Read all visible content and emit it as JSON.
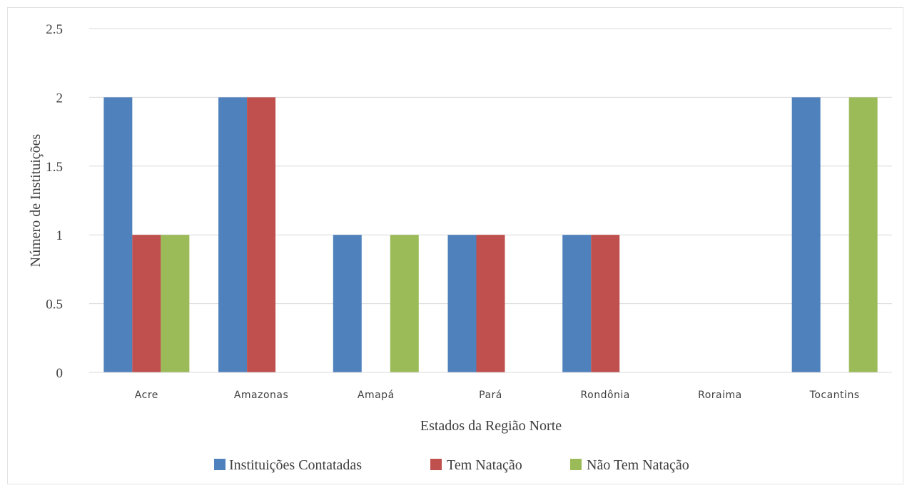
{
  "chart_data": {
    "type": "bar",
    "categories": [
      "Acre",
      "Amazonas",
      "Amapá",
      "Pará",
      "Rondônia",
      "Roraima",
      "Tocantins"
    ],
    "series": [
      {
        "name": "Instituições Contatadas",
        "color": "#4F81BD",
        "values": [
          2,
          2,
          1,
          1,
          1,
          0,
          2
        ]
      },
      {
        "name": "Tem Natação",
        "color": "#C0504D",
        "values": [
          1,
          2,
          0,
          1,
          1,
          0,
          0
        ]
      },
      {
        "name": "Não Tem Natação",
        "color": "#9BBB59",
        "values": [
          1,
          0,
          1,
          0,
          0,
          0,
          2
        ]
      }
    ],
    "xlabel": "Estados da Região Norte",
    "ylabel": "Número de Instituições",
    "ylim": [
      0,
      2.5
    ],
    "yticks": [
      "0",
      "0.5",
      "1",
      "1.5",
      "2",
      "2.5"
    ],
    "grid": true,
    "legend_position": "bottom"
  }
}
